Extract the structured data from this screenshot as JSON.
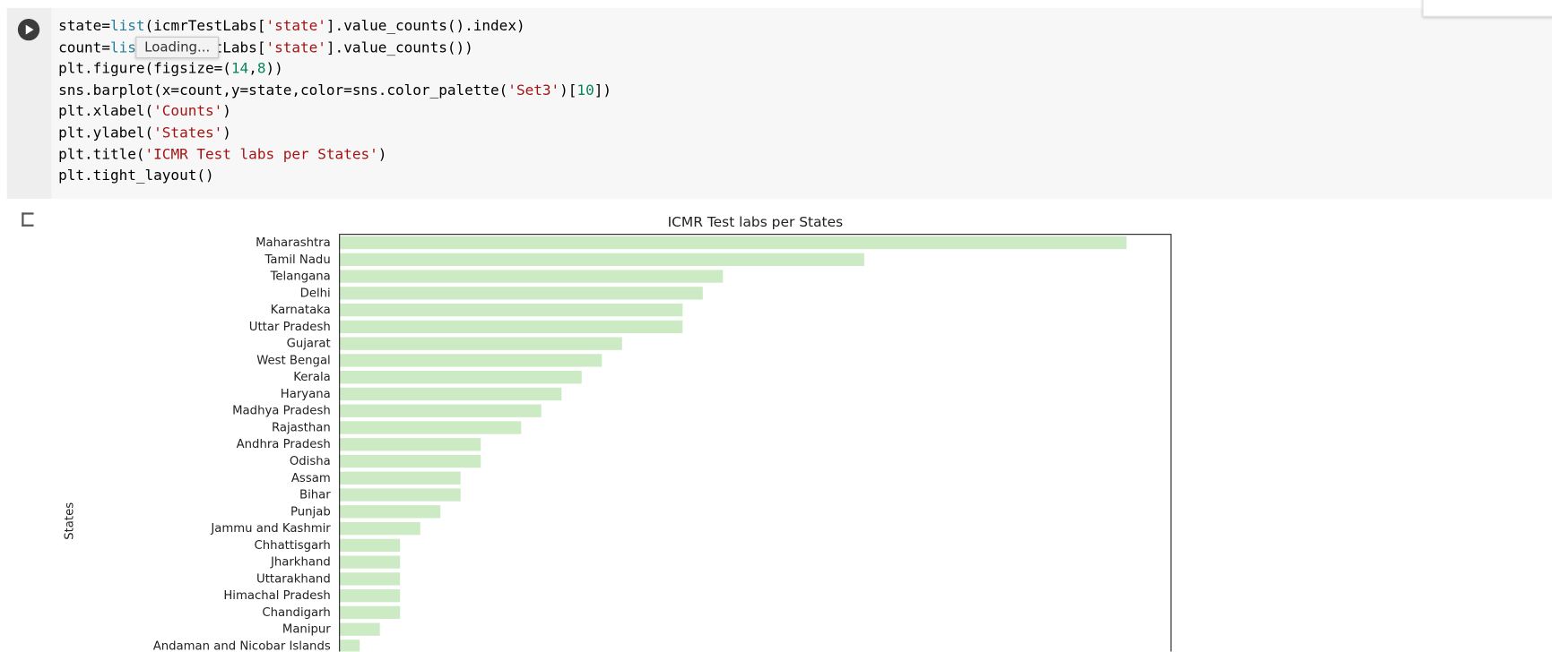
{
  "code": {
    "lines": [
      "state=list(icmrTestLabs['state'].value_counts().index)",
      "count=list(icmrTestLabs['state'].value_counts())",
      "plt.figure(figsize=(14,8))",
      "sns.barplot(x=count,y=state,color=sns.color_palette('Set3')[10])",
      "plt.xlabel('Counts')",
      "plt.ylabel('States')",
      "plt.title('ICMR Test labs per States')",
      "plt.tight_layout()"
    ],
    "tooltip": "Loading..."
  },
  "chart_data": {
    "type": "barh",
    "title": "ICMR Test labs per States",
    "ylabel": "States",
    "categories": [
      "Maharashtra",
      "Tamil Nadu",
      "Telangana",
      "Delhi",
      "Karnataka",
      "Uttar Pradesh",
      "Gujarat",
      "West Bengal",
      "Kerala",
      "Haryana",
      "Madhya Pradesh",
      "Rajasthan",
      "Andhra Pradesh",
      "Odisha",
      "Assam",
      "Bihar",
      "Punjab",
      "Jammu and Kashmir",
      "Chhattisgarh",
      "Jharkhand",
      "Uttarakhand",
      "Himachal Pradesh",
      "Chandigarh",
      "Manipur",
      "Andaman and Nicobar Islands"
    ],
    "values": [
      39,
      26,
      19,
      18,
      17,
      17,
      14,
      13,
      12,
      11,
      10,
      9,
      7,
      7,
      6,
      6,
      5,
      4,
      3,
      3,
      3,
      3,
      3,
      2,
      1
    ],
    "color": "#ccebc5",
    "xlim": [
      0,
      41.2
    ]
  }
}
